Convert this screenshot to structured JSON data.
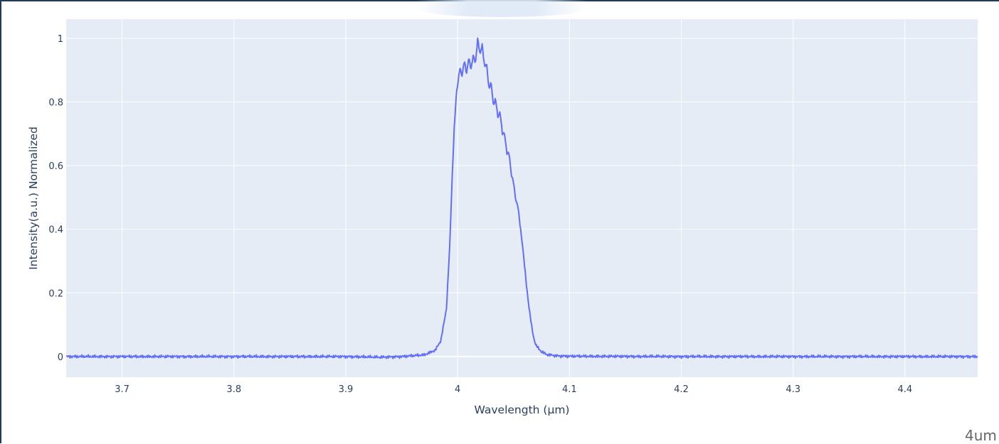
{
  "chart_data": {
    "type": "line",
    "xlabel": "Wavelength (µm)",
    "ylabel": "Intensity(a.u.) Normalized",
    "xlim": [
      3.65,
      4.465
    ],
    "ylim": [
      -0.065,
      1.06
    ],
    "x_ticks": [
      3.7,
      3.8,
      3.9,
      4.0,
      4.1,
      4.2,
      4.3,
      4.4
    ],
    "x_tick_labels": [
      "3.7",
      "3.8",
      "3.9",
      "4",
      "4.1",
      "4.2",
      "4.3",
      "4.4"
    ],
    "y_ticks": [
      0,
      0.2,
      0.4,
      0.6,
      0.8,
      1.0
    ],
    "y_tick_labels": [
      "0",
      "0.2",
      "0.4",
      "0.6",
      "0.8",
      "1"
    ],
    "grid": true,
    "background_color": "#e5ecf6",
    "line_color": "#636efa",
    "series": [
      {
        "x": [
          3.65,
          3.7,
          3.8,
          3.9,
          3.93,
          3.95,
          3.97,
          3.98,
          3.985,
          3.99,
          3.993,
          3.995,
          3.997,
          3.999,
          4.0,
          4.002,
          4.004,
          4.006,
          4.008,
          4.01,
          4.012,
          4.014,
          4.016,
          4.018,
          4.02,
          4.022,
          4.024,
          4.026,
          4.028,
          4.03,
          4.032,
          4.034,
          4.036,
          4.038,
          4.04,
          4.042,
          4.044,
          4.046,
          4.048,
          4.05,
          4.052,
          4.054,
          4.056,
          4.058,
          4.06,
          4.062,
          4.064,
          4.066,
          4.068,
          4.07,
          4.075,
          4.08,
          4.09,
          4.1,
          4.2,
          4.3,
          4.4,
          4.465
        ],
        "y": [
          0.0,
          0.0,
          0.0,
          0.0,
          -0.002,
          0.0,
          0.005,
          0.02,
          0.05,
          0.15,
          0.35,
          0.55,
          0.72,
          0.83,
          0.85,
          0.91,
          0.88,
          0.93,
          0.89,
          0.94,
          0.9,
          0.95,
          0.92,
          1.0,
          0.95,
          0.98,
          0.91,
          0.92,
          0.84,
          0.86,
          0.79,
          0.81,
          0.75,
          0.77,
          0.7,
          0.7,
          0.64,
          0.64,
          0.57,
          0.55,
          0.49,
          0.47,
          0.41,
          0.35,
          0.28,
          0.21,
          0.15,
          0.1,
          0.06,
          0.035,
          0.015,
          0.006,
          0.002,
          0.001,
          0.0,
          0.0,
          0.0,
          0.0
        ]
      }
    ]
  },
  "corner_label": "4um"
}
